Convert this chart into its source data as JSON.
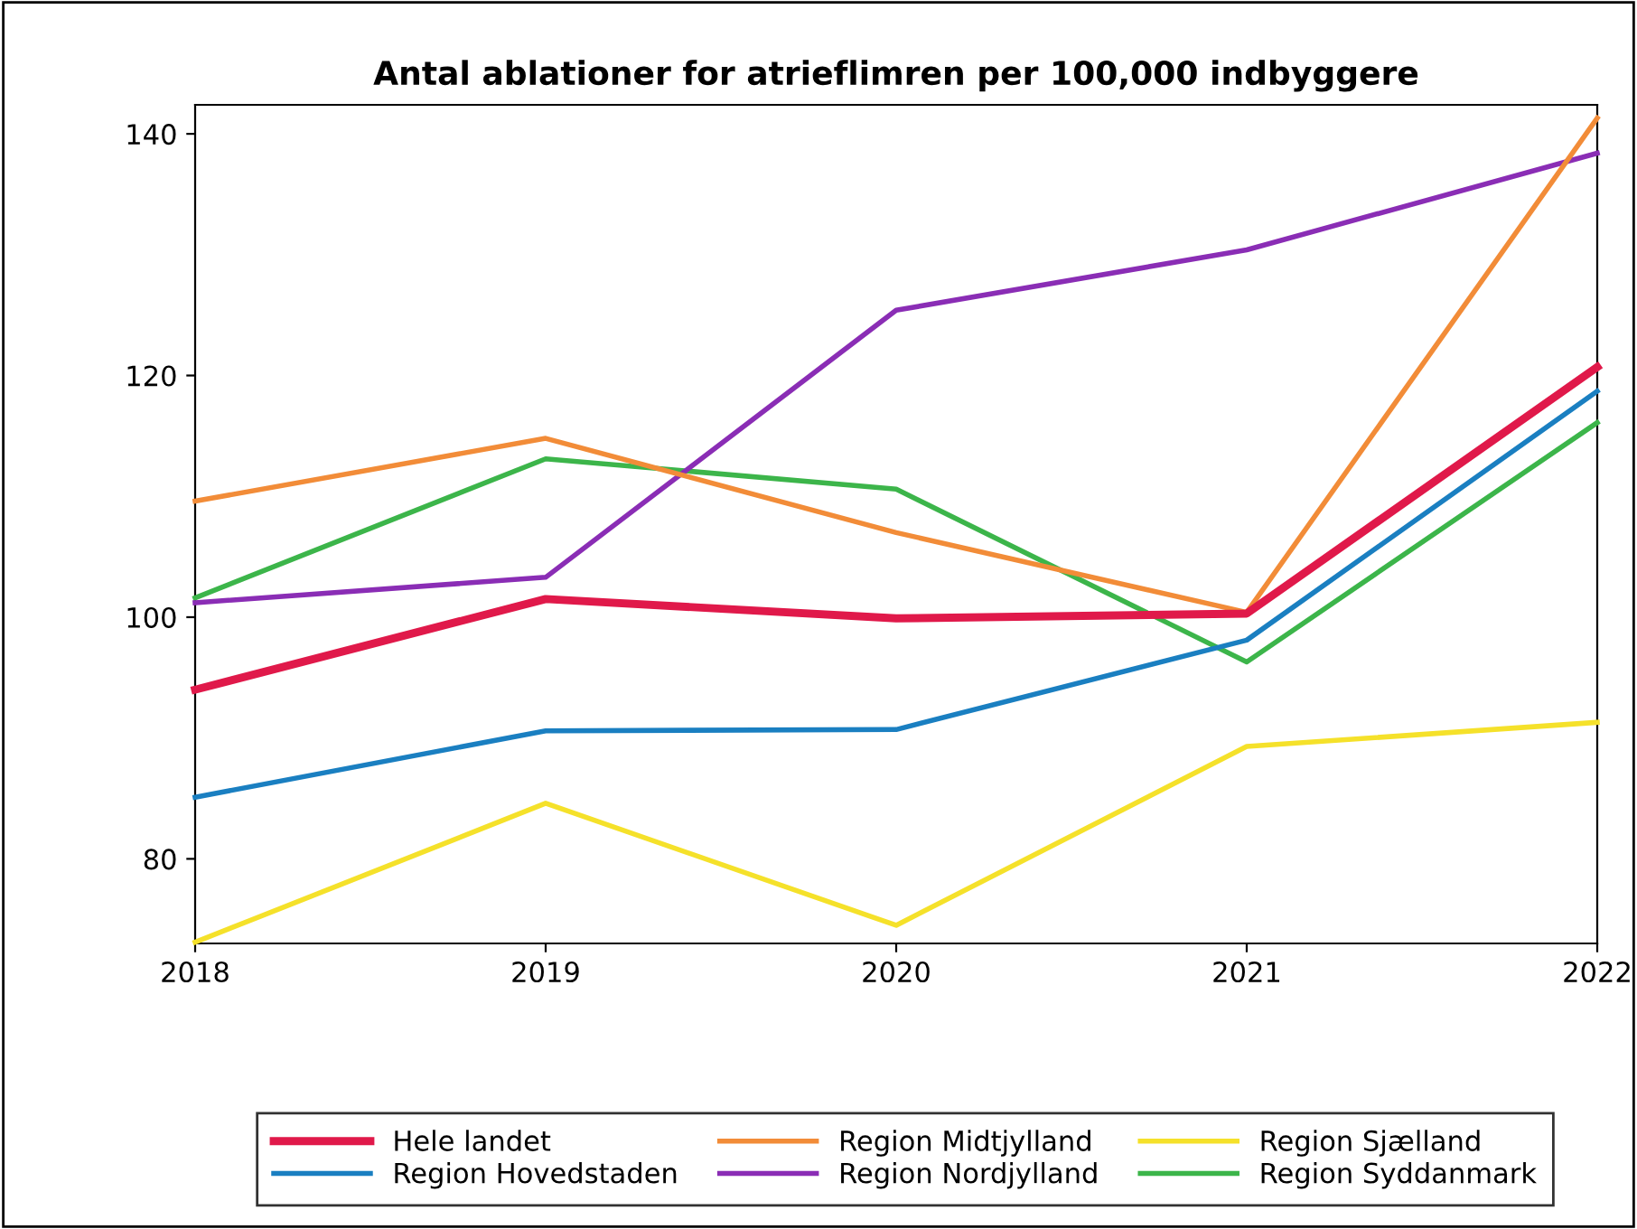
{
  "chart_data": {
    "type": "line",
    "title": "Antal ablationer for atrieflimren per 100,000 indbyggere",
    "x": [
      2018,
      2019,
      2020,
      2021,
      2022
    ],
    "series": [
      {
        "name": "Hele landet",
        "color": "#e0194a",
        "values": [
          94.0,
          101.5,
          99.9,
          100.3,
          120.7
        ]
      },
      {
        "name": "Region Hovedstaden",
        "color": "#1a7fc1",
        "values": [
          85.1,
          90.6,
          90.7,
          98.1,
          118.7
        ]
      },
      {
        "name": "Region Midtjylland",
        "color": "#f28c38",
        "values": [
          109.6,
          114.8,
          107.0,
          100.4,
          141.3
        ]
      },
      {
        "name": "Region Nordjylland",
        "color": "#8a2db5",
        "values": [
          101.2,
          103.3,
          125.4,
          130.4,
          138.4
        ]
      },
      {
        "name": "Region Sjælland",
        "color": "#f5e12a",
        "values": [
          73.1,
          84.6,
          74.5,
          89.3,
          91.3
        ]
      },
      {
        "name": "Region Syddanmark",
        "color": "#3cb54a",
        "values": [
          101.6,
          113.1,
          110.6,
          96.3,
          116.1
        ]
      }
    ],
    "xlim": [
      2018,
      2022
    ],
    "xticks": [
      2018,
      2019,
      2020,
      2021,
      2022
    ],
    "ylim": [
      73,
      142.4
    ],
    "yticks": [
      80,
      100,
      120,
      140
    ],
    "grid": false,
    "legend": "bottom",
    "marker": "none",
    "line_style": "solid"
  }
}
